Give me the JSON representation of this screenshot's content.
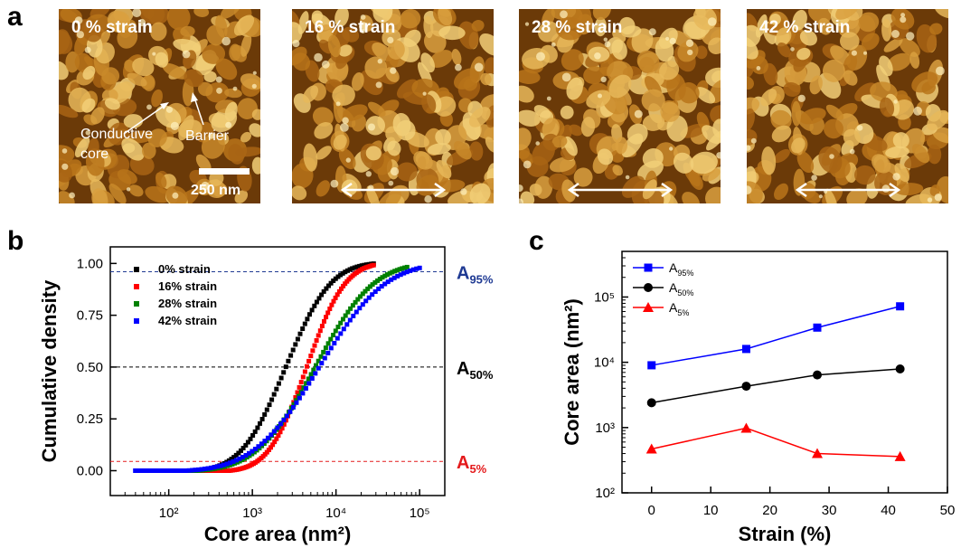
{
  "panels": {
    "a": "a",
    "b": "b",
    "c": "c"
  },
  "afm": {
    "images": [
      {
        "label": "0 % strain",
        "seed": 3,
        "show_arrow": false
      },
      {
        "label": "16 % strain",
        "seed": 17,
        "show_arrow": true
      },
      {
        "label": "28 % strain",
        "seed": 41,
        "show_arrow": true
      },
      {
        "label": "42 % strain",
        "seed": 77,
        "show_arrow": true
      }
    ],
    "annotations": {
      "conductive": "Conductive",
      "core": "core",
      "barrier": "Barrier",
      "scale": "250 nm"
    }
  },
  "chart_data": [
    {
      "type": "scatter",
      "panel": "b",
      "xlabel": "Core area (nm²)",
      "ylabel": "Cumulative density",
      "xscale": "log",
      "xlim": [
        20,
        200000
      ],
      "ylim": [
        -0.12,
        1.08
      ],
      "xticks": [
        100,
        1000,
        10000,
        100000
      ],
      "xtick_labels": [
        "10²",
        "10³",
        "10⁴",
        "10⁵"
      ],
      "yticks": [
        0.0,
        0.25,
        0.5,
        0.75,
        1.0
      ],
      "ytick_labels": [
        "0.00",
        "0.25",
        "0.50",
        "0.75",
        "1.00"
      ],
      "legend_position": "top-left",
      "series": [
        {
          "name": "0% strain",
          "color": "#000000",
          "logmin": 1.9,
          "median": 3.4,
          "logmax": 4.45,
          "spread": 0.42
        },
        {
          "name": "16% strain",
          "color": "#ff0000",
          "logmin": 2.4,
          "median": 3.65,
          "logmax": 4.45,
          "spread": 0.36
        },
        {
          "name": "28% strain",
          "color": "#008000",
          "logmin": 2.2,
          "median": 3.75,
          "logmax": 4.85,
          "spread": 0.55
        },
        {
          "name": "42% strain",
          "color": "#0000ff",
          "logmin": 1.6,
          "median": 3.8,
          "logmax": 5.0,
          "spread": 0.62
        }
      ],
      "reference_lines": [
        {
          "y": 0.96,
          "color": "#1f3a93",
          "label": "A",
          "sub": "95%"
        },
        {
          "y": 0.5,
          "color": "#000000",
          "label": "A",
          "sub": "50%"
        },
        {
          "y": 0.045,
          "color": "#e41a1c",
          "label": "A",
          "sub": "5%"
        }
      ]
    },
    {
      "type": "line",
      "panel": "c",
      "xlabel": "Strain (%)",
      "ylabel": "Core area (nm²)",
      "yscale": "log",
      "xlim": [
        -5,
        50
      ],
      "ylim": [
        100,
        500000
      ],
      "xticks": [
        0,
        10,
        20,
        30,
        40,
        50
      ],
      "yticks": [
        100,
        1000,
        10000,
        100000
      ],
      "ytick_labels": [
        "10²",
        "10³",
        "10⁴",
        "10⁵"
      ],
      "legend_position": "top-left",
      "x": [
        0,
        16,
        28,
        42
      ],
      "series": [
        {
          "name": "A",
          "sub": "95%",
          "color": "#0000ff",
          "marker": "square",
          "values": [
            9000,
            16000,
            34000,
            72000
          ]
        },
        {
          "name": "A",
          "sub": "50%",
          "color": "#000000",
          "marker": "circle",
          "values": [
            2400,
            4300,
            6400,
            7900
          ]
        },
        {
          "name": "A",
          "sub": "5%",
          "color": "#ff0000",
          "marker": "triangle",
          "values": [
            470,
            980,
            400,
            360
          ]
        }
      ]
    }
  ]
}
